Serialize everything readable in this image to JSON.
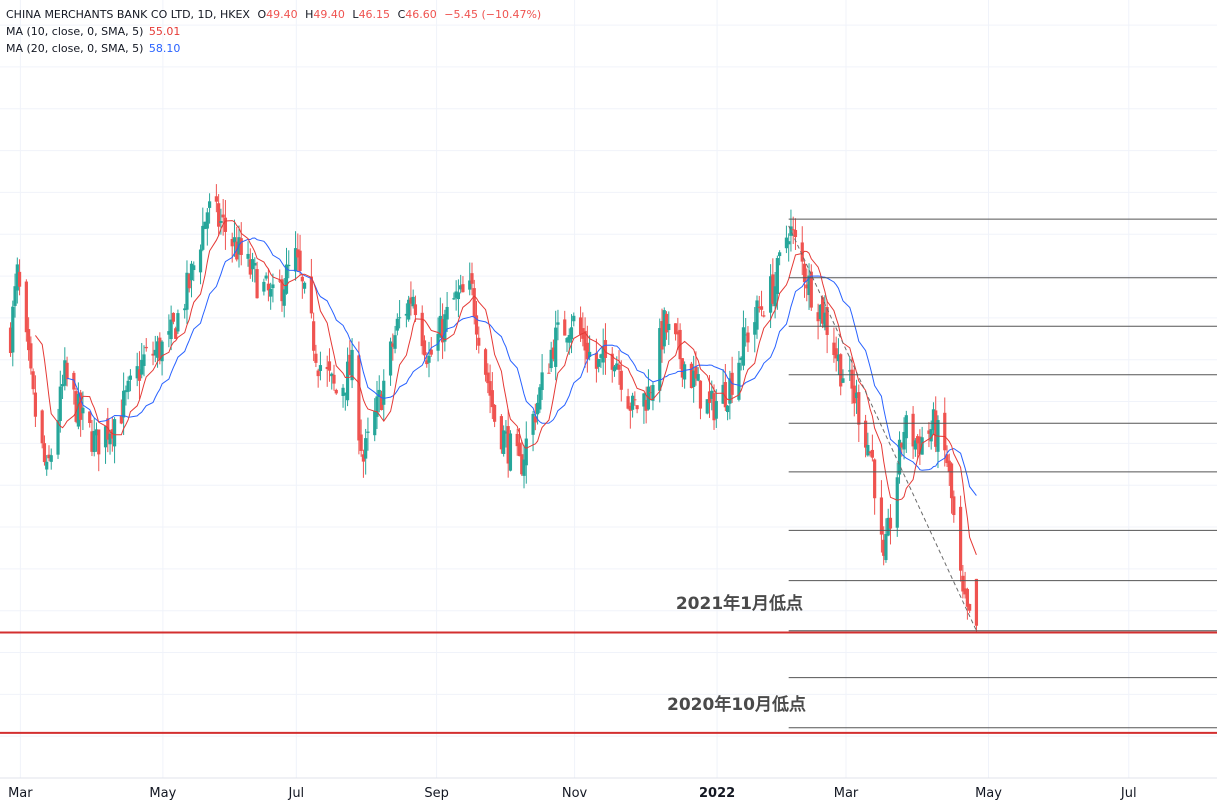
{
  "header": {
    "symbol": "CHINA MERCHANTS BANK CO LTD, 1D, HKEX",
    "ohlc": {
      "o_label": "O",
      "o": "49.40",
      "h_label": "H",
      "h": "49.40",
      "l_label": "L",
      "l": "46.15",
      "c_label": "C",
      "c": "46.60",
      "change": "−5.45 (−10.47%)"
    },
    "ma10_label": "MA (10, close, 0, SMA, 5)",
    "ma10_value": "55.01",
    "ma20_label": "MA (20, close, 0, SMA, 5)",
    "ma20_value": "58.10"
  },
  "colors": {
    "up": "#26a69a",
    "down": "#ef5350",
    "ma10": "#e53935",
    "ma20": "#2962ff",
    "support": "#d32f2f",
    "fib": "#555555",
    "grid": "#f0f3fa"
  },
  "annotations": {
    "jan2021_low": "2021年1月低点",
    "oct2020_low": "2020年10月低点"
  },
  "chart_data": {
    "type": "candlestick",
    "title": "CHINA MERCHANTS BANK CO LTD, 1D, HKEX",
    "x_tick_labels": [
      "Mar",
      "May",
      "Jul",
      "Sep",
      "Nov",
      "2022",
      "Mar",
      "May",
      "Jul"
    ],
    "price_path": [
      [
        "2021-02-22",
        64.0
      ],
      [
        "2021-02-25",
        67.5
      ],
      [
        "2021-03-04",
        60.0
      ],
      [
        "2021-03-10",
        55.5
      ],
      [
        "2021-03-18",
        61.5
      ],
      [
        "2021-03-25",
        59.0
      ],
      [
        "2021-04-01",
        57.5
      ],
      [
        "2021-04-12",
        59.5
      ],
      [
        "2021-04-22",
        62.5
      ],
      [
        "2021-05-03",
        63.5
      ],
      [
        "2021-05-12",
        67.0
      ],
      [
        "2021-05-20",
        71.5
      ],
      [
        "2021-05-27",
        70.5
      ],
      [
        "2021-06-07",
        68.0
      ],
      [
        "2021-06-18",
        66.0
      ],
      [
        "2021-06-28",
        68.5
      ],
      [
        "2021-07-08",
        62.5
      ],
      [
        "2021-07-16",
        60.5
      ],
      [
        "2021-07-23",
        62.0
      ],
      [
        "2021-07-28",
        56.5
      ],
      [
        "2021-08-05",
        60.5
      ],
      [
        "2021-08-12",
        64.5
      ],
      [
        "2021-08-19",
        66.5
      ],
      [
        "2021-08-26",
        62.5
      ],
      [
        "2021-09-06",
        66.0
      ],
      [
        "2021-09-14",
        66.5
      ],
      [
        "2021-09-24",
        59.0
      ],
      [
        "2021-10-05",
        56.0
      ],
      [
        "2021-10-13",
        60.0
      ],
      [
        "2021-10-20",
        63.5
      ],
      [
        "2021-10-28",
        65.0
      ],
      [
        "2021-11-08",
        62.0
      ],
      [
        "2021-11-16",
        63.0
      ],
      [
        "2021-11-24",
        59.5
      ],
      [
        "2021-12-01",
        60.5
      ],
      [
        "2021-12-08",
        64.5
      ],
      [
        "2021-12-16",
        62.5
      ],
      [
        "2021-12-28",
        59.5
      ],
      [
        "2022-01-06",
        61.0
      ],
      [
        "2022-01-12",
        63.5
      ],
      [
        "2022-01-19",
        65.5
      ],
      [
        "2022-01-26",
        67.0
      ],
      [
        "2022-02-01",
        70.5
      ],
      [
        "2022-02-10",
        67.0
      ],
      [
        "2022-02-17",
        65.0
      ],
      [
        "2022-02-24",
        62.0
      ],
      [
        "2022-03-03",
        60.0
      ],
      [
        "2022-03-10",
        56.5
      ],
      [
        "2022-03-15",
        50.0
      ],
      [
        "2022-03-18",
        53.0
      ],
      [
        "2022-03-24",
        58.5
      ],
      [
        "2022-03-30",
        57.5
      ],
      [
        "2022-04-06",
        58.5
      ],
      [
        "2022-04-12",
        56.5
      ],
      [
        "2022-04-19",
        48.0
      ],
      [
        "2022-04-25",
        45.5
      ]
    ],
    "last_bar": {
      "open": 49.4,
      "high": 49.4,
      "low": 46.15,
      "close": 46.6,
      "change": -5.45,
      "change_pct": -10.47
    },
    "ma10_last": 55.01,
    "ma20_last": 58.1,
    "fib_levels": [
      70.9,
      67.4,
      64.5,
      61.6,
      58.7,
      55.8,
      52.3,
      49.3,
      46.3,
      43.5,
      40.5
    ],
    "support_levels": [
      {
        "label": "2021年1月低点",
        "price": 46.2
      },
      {
        "label": "2020年10月低点",
        "price": 40.2
      }
    ],
    "trend_line": [
      [
        "2022-02-01",
        70.5
      ],
      [
        "2022-04-25",
        46.3
      ]
    ],
    "ylim": [
      37.5,
      84.0
    ],
    "xlim": [
      "2021-02-20",
      "2022-08-12"
    ],
    "grid": true
  }
}
